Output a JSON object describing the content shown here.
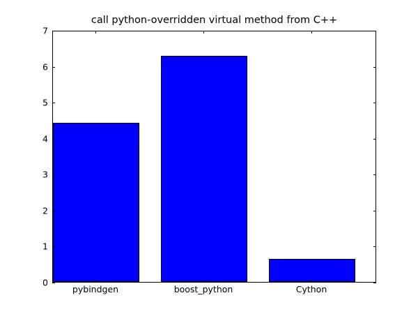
{
  "chart_data": {
    "type": "bar",
    "title": "call python-overridden virtual method from C++",
    "xlabel": "",
    "ylabel": "",
    "categories": [
      "pybindgen",
      "boost_python",
      "Cython"
    ],
    "values": [
      4.42,
      6.28,
      0.64
    ],
    "ylim": [
      0,
      7
    ],
    "yticks": [
      "0",
      "1",
      "2",
      "3",
      "4",
      "5",
      "6",
      "7"
    ],
    "grid": false,
    "legend": null,
    "bar_color": "#0000ff"
  }
}
